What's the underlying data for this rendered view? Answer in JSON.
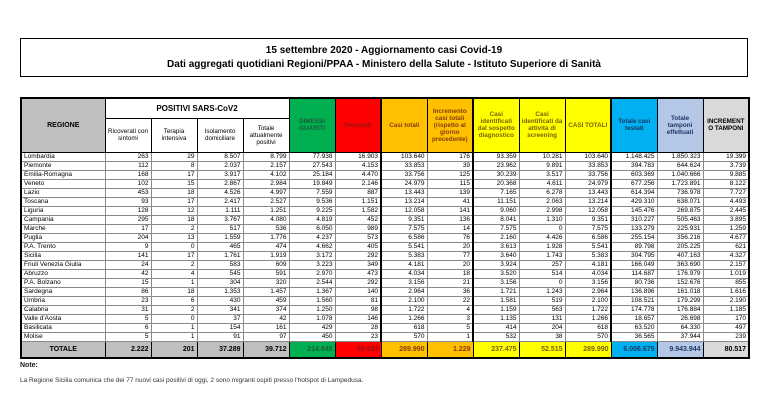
{
  "title": {
    "line1": "15 settembre 2020 - Aggiornamento casi Covid-19",
    "line2": "Dati aggregati quotidiani Regioni/PPAA - Ministero della Salute - Istituto Superiore di Sanità"
  },
  "table": {
    "region_header": "REGIONE",
    "group_header": "POSITIVI SARS-CoV2",
    "columns": [
      "Ricoverati con sintomi",
      "Terapia intensiva",
      "Isolamento domiciliare",
      "Totale attualmente positivi",
      "DIMESSI GUARITI",
      "Deceduti",
      "Casi totali",
      "Incremento casi totali (rispetto al giorno precedente)",
      "Casi identificati dal sospetto diagnostico",
      "Casi identificati da attività di screening",
      "CASI TOTALI",
      "Totale casi testati",
      "Totale tamponi effettuati",
      "INCREMENTO TAMPONI"
    ],
    "column_styles": [
      "white",
      "white",
      "white",
      "white",
      "green",
      "red",
      "orange",
      "orange",
      "yellow",
      "yellow",
      "yellow",
      "cyan",
      "lightblue",
      "gray"
    ],
    "group_separator_value_indexes": [
      6,
      8,
      11
    ],
    "rows": [
      {
        "region": "Lombardia",
        "values": [
          "263",
          "29",
          "8.507",
          "8.799",
          "77.938",
          "16.903",
          "103.640",
          "176",
          "93.359",
          "10.281",
          "103.640",
          "1.148.425",
          "1.850.323",
          "19.399"
        ]
      },
      {
        "region": "Piemonte",
        "values": [
          "112",
          "8",
          "2.037",
          "2.157",
          "27.543",
          "4.153",
          "33.853",
          "39",
          "23.962",
          "9.891",
          "33.853",
          "394.783",
          "644.624",
          "3.739"
        ]
      },
      {
        "region": "Emilia-Romagna",
        "values": [
          "168",
          "17",
          "3.917",
          "4.102",
          "25.184",
          "4.470",
          "33.756",
          "125",
          "30.239",
          "3.517",
          "33.756",
          "603.369",
          "1.040.666",
          "9.885"
        ]
      },
      {
        "region": "Veneto",
        "values": [
          "102",
          "15",
          "2.867",
          "2.984",
          "19.849",
          "2.146",
          "24.979",
          "115",
          "20.368",
          "4.611",
          "24.979",
          "677.256",
          "1.723.891",
          "8.122"
        ]
      },
      {
        "region": "Lazio",
        "values": [
          "453",
          "18",
          "4.526",
          "4.997",
          "7.559",
          "887",
          "13.443",
          "139",
          "7.165",
          "6.278",
          "13.443",
          "614.394",
          "736.978",
          "7.727"
        ]
      },
      {
        "region": "Toscana",
        "values": [
          "93",
          "17",
          "2.417",
          "2.527",
          "9.536",
          "1.151",
          "13.214",
          "41",
          "11.151",
          "2.063",
          "13.214",
          "429.310",
          "638.071",
          "4.493"
        ]
      },
      {
        "region": "Liguria",
        "values": [
          "128",
          "12",
          "1.111",
          "1.251",
          "9.225",
          "1.582",
          "12.058",
          "141",
          "9.060",
          "2.998",
          "12.058",
          "145.476",
          "269.875",
          "2.445"
        ]
      },
      {
        "region": "Campania",
        "values": [
          "295",
          "18",
          "3.767",
          "4.080",
          "4.819",
          "452",
          "9.351",
          "136",
          "8.041",
          "1.310",
          "9.351",
          "310.227",
          "505.463",
          "3.895"
        ]
      },
      {
        "region": "Marche",
        "values": [
          "17",
          "2",
          "517",
          "536",
          "6.050",
          "989",
          "7.575",
          "14",
          "7.575",
          "0",
          "7.575",
          "133.279",
          "225.931",
          "1.259"
        ]
      },
      {
        "region": "Puglia",
        "values": [
          "204",
          "13",
          "1.559",
          "1.776",
          "4.237",
          "573",
          "6.586",
          "76",
          "2.160",
          "4.426",
          "6.586",
          "255.154",
          "356.216",
          "4.677"
        ]
      },
      {
        "region": "P.A. Trento",
        "values": [
          "9",
          "0",
          "465",
          "474",
          "4.662",
          "405",
          "5.541",
          "20",
          "3.613",
          "1.928",
          "5.541",
          "89.798",
          "205.225",
          "621"
        ]
      },
      {
        "region": "Sicilia",
        "values": [
          "141",
          "17",
          "1.761",
          "1.919",
          "3.172",
          "292",
          "5.383",
          "77",
          "3.640",
          "1.743",
          "5.383",
          "304.795",
          "407.163",
          "4.327"
        ]
      },
      {
        "region": "Friuli Venezia Giulia",
        "values": [
          "24",
          "2",
          "583",
          "609",
          "3.223",
          "349",
          "4.181",
          "20",
          "3.924",
          "257",
          "4.181",
          "166.049",
          "363.690",
          "2.157"
        ]
      },
      {
        "region": "Abruzzo",
        "values": [
          "42",
          "4",
          "545",
          "591",
          "2.970",
          "473",
          "4.034",
          "18",
          "3.520",
          "514",
          "4.034",
          "114.687",
          "176.979",
          "1.019"
        ]
      },
      {
        "region": "P.A. Bolzano",
        "values": [
          "15",
          "1",
          "304",
          "320",
          "2.544",
          "292",
          "3.156",
          "21",
          "3.156",
          "0",
          "3.156",
          "80.736",
          "152.676",
          "855"
        ]
      },
      {
        "region": "Sardegna",
        "values": [
          "86",
          "18",
          "1.353",
          "1.457",
          "1.367",
          "140",
          "2.964",
          "36",
          "1.721",
          "1.243",
          "2.964",
          "136.896",
          "161.018",
          "1.616"
        ]
      },
      {
        "region": "Umbria",
        "values": [
          "23",
          "6",
          "430",
          "459",
          "1.560",
          "81",
          "2.100",
          "22",
          "1.581",
          "519",
          "2.100",
          "108.521",
          "179.299",
          "2.190"
        ]
      },
      {
        "region": "Calabria",
        "values": [
          "31",
          "2",
          "341",
          "374",
          "1.250",
          "98",
          "1.722",
          "4",
          "1.159",
          "563",
          "1.722",
          "174.778",
          "176.884",
          "1.185"
        ]
      },
      {
        "region": "Valle d'Aosta",
        "values": [
          "5",
          "0",
          "37",
          "42",
          "1.078",
          "146",
          "1.266",
          "3",
          "1.135",
          "131",
          "1.266",
          "18.657",
          "26.698",
          "170"
        ]
      },
      {
        "region": "Basilicata",
        "values": [
          "6",
          "1",
          "154",
          "161",
          "429",
          "28",
          "618",
          "5",
          "414",
          "204",
          "618",
          "63.520",
          "64.330",
          "497"
        ]
      },
      {
        "region": "Molise",
        "values": [
          "5",
          "1",
          "91",
          "97",
          "450",
          "23",
          "570",
          "1",
          "532",
          "38",
          "570",
          "36.565",
          "37.944",
          "239"
        ]
      }
    ],
    "total_row": {
      "label": "TOTALE",
      "values": [
        "2.222",
        "201",
        "37.289",
        "39.712",
        "214.645",
        "35.633",
        "289.990",
        "1.229",
        "237.475",
        "52.515",
        "289.990",
        "6.006.675",
        "9.943.944",
        "80.517"
      ]
    }
  },
  "note": {
    "label": "Note:",
    "text": "La Regione Sicilia comunica che dei 77 nuovi casi positivi di oggi, 2 sono migranti ospiti presso l'hotspot di Lampedusa."
  },
  "colors": {
    "dimessi_guariti_bg": "#00B050",
    "deceduti_bg": "#FF0000",
    "casi_totali_bg": "#FFC000",
    "casi_identificati_bg": "#FFFF00",
    "casi_testati_bg": "#00B0F0",
    "tamponi_bg": "#B4C7E7",
    "incremento_tamponi_bg": "#D9D9D9",
    "regione_header_bg": "#BFBFBF"
  }
}
